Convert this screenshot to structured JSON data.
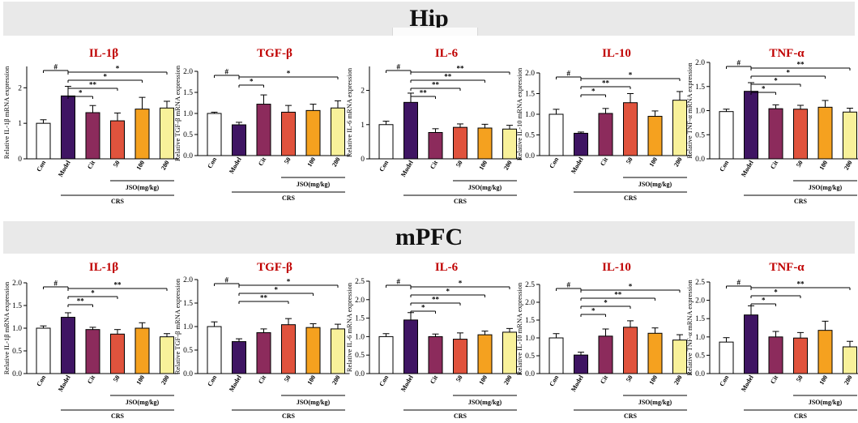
{
  "sections": {
    "hip": {
      "label": "Hip"
    },
    "mpfc": {
      "label": "mPFC"
    }
  },
  "groups": [
    "Con",
    "Model",
    "Cit",
    "50",
    "100",
    "200"
  ],
  "bar_colors": [
    "#ffffff",
    "#3f1563",
    "#8c2b5c",
    "#e0533d",
    "#f5a11f",
    "#f8f19a"
  ],
  "title_color": "#c00000",
  "jso_label": "JSO(mg/kg)",
  "crs_label": "CRS",
  "chart_data": [
    {
      "type": "bar",
      "section": "hip",
      "title": "IL-1β",
      "ylabel": "Relative IL-1β mRNA expression",
      "ylim": [
        0,
        2.6
      ],
      "yticks": [
        0,
        1,
        2
      ],
      "yticklabels": [
        "0",
        "1",
        "2"
      ],
      "categories": [
        "Con",
        "Model",
        "Cit",
        "50",
        "100",
        "200"
      ],
      "values": [
        1.0,
        1.77,
        1.3,
        1.07,
        1.4,
        1.43
      ],
      "errors": [
        0.1,
        0.27,
        0.2,
        0.22,
        0.33,
        0.19
      ],
      "annotations": [
        {
          "from": "Con",
          "to": "Model",
          "label": "#"
        },
        {
          "from": "Model",
          "to": "Cit",
          "label": "*"
        },
        {
          "from": "Model",
          "to": "50",
          "label": "**"
        },
        {
          "from": "Model",
          "to": "100",
          "label": "*"
        },
        {
          "from": "Model",
          "to": "200",
          "label": "*"
        }
      ]
    },
    {
      "type": "bar",
      "section": "hip",
      "title": "TGF-β",
      "ylabel": "Relative TGF-β mRNA expression",
      "ylim": [
        0,
        2.0
      ],
      "yticks": [
        0,
        0.5,
        1,
        1.5,
        2
      ],
      "yticklabels": [
        "0.0",
        "0.5",
        "1.0",
        "1.5",
        "2.0"
      ],
      "categories": [
        "Con",
        "Model",
        "Cit",
        "50",
        "100",
        "200"
      ],
      "values": [
        1.0,
        0.73,
        1.22,
        1.03,
        1.07,
        1.13
      ],
      "errors": [
        0.03,
        0.06,
        0.22,
        0.16,
        0.15,
        0.17
      ],
      "annotations": [
        {
          "from": "Con",
          "to": "Model",
          "label": "#"
        },
        {
          "from": "Model",
          "to": "Cit",
          "label": "*"
        },
        {
          "from": "Model",
          "to": "200",
          "label": "*"
        }
      ]
    },
    {
      "type": "bar",
      "section": "hip",
      "title": "IL-6",
      "ylabel": "Relative IL-6 mRNA expression",
      "ylim": [
        0,
        2.7
      ],
      "yticks": [
        0,
        1,
        2
      ],
      "yticklabels": [
        "0",
        "1",
        "2"
      ],
      "categories": [
        "Con",
        "Model",
        "Cit",
        "50",
        "100",
        "200"
      ],
      "values": [
        1.0,
        1.65,
        0.77,
        0.92,
        0.9,
        0.87
      ],
      "errors": [
        0.1,
        0.27,
        0.11,
        0.1,
        0.11,
        0.11
      ],
      "annotations": [
        {
          "from": "Con",
          "to": "Model",
          "label": "#"
        },
        {
          "from": "Model",
          "to": "Cit",
          "label": "**"
        },
        {
          "from": "Model",
          "to": "50",
          "label": "**"
        },
        {
          "from": "Model",
          "to": "100",
          "label": "**"
        },
        {
          "from": "Model",
          "to": "200",
          "label": "**"
        }
      ]
    },
    {
      "type": "bar",
      "section": "hip",
      "title": "IL-10",
      "ylabel": "Relative IL-10 mRNA expression",
      "ylim": [
        0,
        2.0
      ],
      "yticks": [
        0,
        0.5,
        1,
        1.5,
        2
      ],
      "yticklabels": [
        "0.0",
        "0.5",
        "1.0",
        "1.5",
        "2.0"
      ],
      "categories": [
        "Con",
        "Model",
        "Cit",
        "50",
        "100",
        "200"
      ],
      "values": [
        1.0,
        0.54,
        1.02,
        1.28,
        0.95,
        1.34
      ],
      "errors": [
        0.12,
        0.03,
        0.12,
        0.22,
        0.13,
        0.21
      ],
      "annotations": [
        {
          "from": "Con",
          "to": "Model",
          "label": "#"
        },
        {
          "from": "Model",
          "to": "Cit",
          "label": "*"
        },
        {
          "from": "Model",
          "to": "50",
          "label": "**"
        },
        {
          "from": "Model",
          "to": "200",
          "label": "*"
        }
      ]
    },
    {
      "type": "bar",
      "section": "hip",
      "title": "TNF-α",
      "ylabel": "Relative TNF-α mRNA expression",
      "ylim": [
        0,
        2.0
      ],
      "yticks": [
        0,
        0.5,
        1,
        1.5,
        2
      ],
      "yticklabels": [
        "0.0",
        "0.5",
        "1.0",
        "1.5",
        "2.0"
      ],
      "categories": [
        "Con",
        "Model",
        "Cit",
        "50",
        "100",
        "200"
      ],
      "values": [
        0.98,
        1.4,
        1.04,
        1.03,
        1.07,
        0.97
      ],
      "errors": [
        0.05,
        0.18,
        0.08,
        0.08,
        0.14,
        0.08
      ],
      "annotations": [
        {
          "from": "Con",
          "to": "Model",
          "label": "#"
        },
        {
          "from": "Model",
          "to": "Cit",
          "label": "*"
        },
        {
          "from": "Model",
          "to": "50",
          "label": "*"
        },
        {
          "from": "Model",
          "to": "100",
          "label": "*"
        },
        {
          "from": "Model",
          "to": "200",
          "label": "**"
        }
      ]
    },
    {
      "type": "bar",
      "section": "mpfc",
      "title": "IL-1β",
      "ylabel": "Relative IL-1β mRNA expression",
      "ylim": [
        0,
        2.0
      ],
      "yticks": [
        0,
        0.5,
        1,
        1.5,
        2
      ],
      "yticklabels": [
        "0.0",
        "0.5",
        "1.0",
        "1.5",
        "2.0"
      ],
      "categories": [
        "Con",
        "Model",
        "Cit",
        "50",
        "100",
        "200"
      ],
      "values": [
        1.0,
        1.24,
        0.97,
        0.87,
        1.0,
        0.81
      ],
      "errors": [
        0.05,
        0.1,
        0.05,
        0.1,
        0.12,
        0.07
      ],
      "annotations": [
        {
          "from": "Con",
          "to": "Model",
          "label": "#"
        },
        {
          "from": "Model",
          "to": "Cit",
          "label": "**"
        },
        {
          "from": "Model",
          "to": "50",
          "label": "*"
        },
        {
          "from": "Model",
          "to": "200",
          "label": "**"
        }
      ]
    },
    {
      "type": "bar",
      "section": "mpfc",
      "title": "TGF-β",
      "ylabel": "Relative TGF-β mRNA expression",
      "ylim": [
        0,
        2.0
      ],
      "yticks": [
        0,
        0.5,
        1,
        1.5,
        2
      ],
      "yticklabels": [
        "0.0",
        "0.5",
        "1.0",
        "1.5",
        "2.0"
      ],
      "categories": [
        "Con",
        "Model",
        "Cit",
        "50",
        "100",
        "200"
      ],
      "values": [
        1.0,
        0.68,
        0.87,
        1.04,
        0.98,
        0.95
      ],
      "errors": [
        0.1,
        0.06,
        0.08,
        0.13,
        0.08,
        0.1
      ],
      "annotations": [
        {
          "from": "Con",
          "to": "Model",
          "label": "#"
        },
        {
          "from": "Model",
          "to": "50",
          "label": "**"
        },
        {
          "from": "Model",
          "to": "100",
          "label": "*"
        },
        {
          "from": "Model",
          "to": "200",
          "label": "*"
        }
      ]
    },
    {
      "type": "bar",
      "section": "mpfc",
      "title": "IL-6",
      "ylabel": "Relative IL-6 mRNA expression",
      "ylim": [
        0,
        2.5
      ],
      "yticks": [
        0,
        0.5,
        1,
        1.5,
        2,
        2.5
      ],
      "yticklabels": [
        "0.0",
        "0.5",
        "1.0",
        "1.5",
        "2.0",
        "2.5"
      ],
      "categories": [
        "Con",
        "Model",
        "Cit",
        "50",
        "100",
        "200"
      ],
      "values": [
        1.0,
        1.45,
        1.0,
        0.93,
        1.05,
        1.12
      ],
      "errors": [
        0.08,
        0.2,
        0.07,
        0.17,
        0.1,
        0.1
      ],
      "annotations": [
        {
          "from": "Con",
          "to": "Model",
          "label": "#"
        },
        {
          "from": "Model",
          "to": "Cit",
          "label": "*"
        },
        {
          "from": "Model",
          "to": "50",
          "label": "**"
        },
        {
          "from": "Model",
          "to": "100",
          "label": "*"
        },
        {
          "from": "Model",
          "to": "200",
          "label": "*"
        }
      ]
    },
    {
      "type": "bar",
      "section": "mpfc",
      "title": "IL-10",
      "ylabel": "Relative IL-10 mRNA expression",
      "ylim": [
        0,
        2.5
      ],
      "yticks": [
        0,
        0.5,
        1,
        1.5,
        2,
        2.5
      ],
      "yticklabels": [
        "0.0",
        "0.5",
        "1.0",
        "1.5",
        "2.0",
        "2.5"
      ],
      "categories": [
        "Con",
        "Model",
        "Cit",
        "50",
        "100",
        "200"
      ],
      "values": [
        1.0,
        0.52,
        1.05,
        1.3,
        1.13,
        0.94
      ],
      "errors": [
        0.12,
        0.08,
        0.2,
        0.18,
        0.15,
        0.15
      ],
      "annotations": [
        {
          "from": "Con",
          "to": "Model",
          "label": "#"
        },
        {
          "from": "Model",
          "to": "Cit",
          "label": "*"
        },
        {
          "from": "Model",
          "to": "50",
          "label": "*"
        },
        {
          "from": "Model",
          "to": "100",
          "label": "**"
        },
        {
          "from": "Model",
          "to": "200",
          "label": "*"
        }
      ]
    },
    {
      "type": "bar",
      "section": "mpfc",
      "title": "TNF-α",
      "ylabel": "Relative TNF-α mRNA expression",
      "ylim": [
        0,
        2.5
      ],
      "yticks": [
        0,
        0.5,
        1,
        1.5,
        2,
        2.5
      ],
      "yticklabels": [
        "0.0",
        "0.5",
        "1.0",
        "1.5",
        "2.0",
        "2.5"
      ],
      "categories": [
        "Con",
        "Model",
        "Cit",
        "50",
        "100",
        "200"
      ],
      "values": [
        0.86,
        1.6,
        1.0,
        0.97,
        1.18,
        0.73
      ],
      "errors": [
        0.12,
        0.25,
        0.15,
        0.15,
        0.25,
        0.15
      ],
      "annotations": [
        {
          "from": "Con",
          "to": "Model",
          "label": "#"
        },
        {
          "from": "Model",
          "to": "Cit",
          "label": "*"
        },
        {
          "from": "Model",
          "to": "50",
          "label": "*"
        },
        {
          "from": "Model",
          "to": "200",
          "label": "**"
        }
      ]
    }
  ]
}
